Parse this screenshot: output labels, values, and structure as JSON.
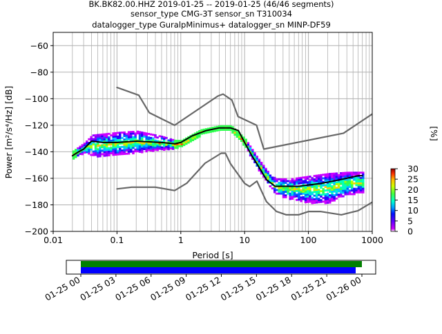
{
  "title_lines": [
    "BK.BK82.00.HHZ   2019-01-25 -- 2019-01-25  (46/46 segments)",
    "sensor_type CMG-3T sensor_sn T310034",
    "datalogger_type GuralpMinimus+ datalogger_sn MINP-DF59"
  ],
  "colorbar": {
    "label": "[%]",
    "ticks": [
      "0",
      "5",
      "10",
      "15",
      "20",
      "25",
      "30"
    ],
    "range": [
      0,
      30
    ]
  },
  "timeline": {
    "tick_labels": [
      "01-25 00",
      "01-25 03",
      "01-25 06",
      "01-25 09",
      "01-25 12",
      "01-25 15",
      "01-25 18",
      "01-25 21",
      "01-26 00"
    ],
    "bar_colors": {
      "green": "#008000",
      "blue": "#0000ff"
    }
  },
  "chart_data": {
    "type": "line",
    "title": "BK.BK82.00.HHZ   2019-01-25 -- 2019-01-25  (46/46 segments)",
    "xlabel": "Period [s]",
    "ylabel": "Power [m²/s⁴/Hz] [dB]",
    "xscale": "log",
    "xlim": [
      0.01,
      1000
    ],
    "ylim": [
      -200,
      -50
    ],
    "x_tick_labels": [
      "0.01",
      "0.1",
      "1",
      "10",
      "100",
      "1000"
    ],
    "y_ticks": [
      -200,
      -180,
      -160,
      -140,
      -120,
      -100,
      -80,
      -60
    ],
    "grid": true,
    "series": [
      {
        "role": "NHNM",
        "color": "#666666",
        "x": [
          0.1,
          0.22,
          0.32,
          0.8,
          3.8,
          4.6,
          6.3,
          7.9,
          15.4,
          20,
          354.8,
          1000
        ],
        "y": [
          -91.5,
          -97.4,
          -110.5,
          -120,
          -98,
          -96.5,
          -101,
          -113.5,
          -120,
          -138,
          -126,
          -111.5
        ]
      },
      {
        "role": "NLNM",
        "color": "#666666",
        "x": [
          0.1,
          0.17,
          0.4,
          0.8,
          1.24,
          2.4,
          4.3,
          5,
          6,
          10,
          12,
          15.6,
          21.9,
          31.6,
          45,
          70,
          101,
          154,
          328,
          600,
          1000
        ],
        "y": [
          -168,
          -166.7,
          -166.7,
          -169.2,
          -163.7,
          -148.6,
          -141.1,
          -141.1,
          -149,
          -163.8,
          -166.2,
          -162.1,
          -177.5,
          -185,
          -187.5,
          -187.5,
          -185,
          -185,
          -187.5,
          -184.4,
          -178
        ]
      },
      {
        "role": "mean",
        "color": "#000000",
        "x": [
          0.02,
          0.025,
          0.03,
          0.04,
          0.06,
          0.1,
          0.2,
          0.5,
          0.8,
          1.0,
          1.5,
          2.5,
          4,
          6,
          8,
          10,
          13,
          17,
          22,
          30,
          45,
          70,
          100,
          150,
          250,
          400,
          600,
          700
        ],
        "y": [
          -143,
          -140,
          -138,
          -132,
          -133,
          -133,
          -132,
          -133,
          -134,
          -133,
          -128,
          -124,
          -122,
          -122,
          -124,
          -133,
          -143,
          -152,
          -161,
          -166,
          -166,
          -166,
          -165,
          -164,
          -162,
          -160,
          -158,
          -158
        ]
      }
    ],
    "ppsd_density": {
      "colormap_range_percent": [
        0,
        30
      ],
      "description_band": [
        {
          "period": 0.02,
          "low": -145,
          "high": -139
        },
        {
          "period": 0.03,
          "low": -140,
          "high": -133
        },
        {
          "period": 0.04,
          "low": -143,
          "high": -127
        },
        {
          "period": 0.1,
          "low": -142,
          "high": -125
        },
        {
          "period": 0.2,
          "low": -140,
          "high": -124
        },
        {
          "period": 0.5,
          "low": -138,
          "high": -128
        },
        {
          "period": 0.8,
          "low": -137,
          "high": -131
        },
        {
          "period": 1.0,
          "low": -136,
          "high": -131
        },
        {
          "period": 2.0,
          "low": -127,
          "high": -123
        },
        {
          "period": 4.0,
          "low": -124,
          "high": -120
        },
        {
          "period": 6.0,
          "low": -124,
          "high": -120
        },
        {
          "period": 10,
          "low": -136,
          "high": -130
        },
        {
          "period": 15,
          "low": -151,
          "high": -143
        },
        {
          "period": 22,
          "low": -163,
          "high": -154
        },
        {
          "period": 30,
          "low": -172,
          "high": -160
        },
        {
          "period": 50,
          "low": -175,
          "high": -160
        },
        {
          "period": 100,
          "low": -178,
          "high": -158
        },
        {
          "period": 200,
          "low": -178,
          "high": -156
        },
        {
          "period": 400,
          "low": -172,
          "high": -155
        },
        {
          "period": 700,
          "low": -170,
          "high": -155
        }
      ]
    }
  }
}
